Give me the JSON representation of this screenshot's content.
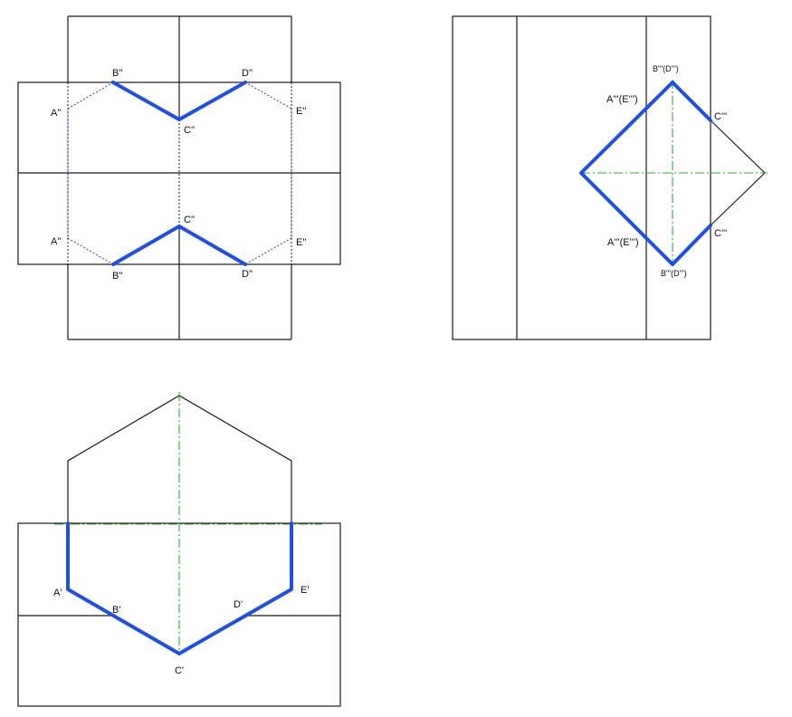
{
  "colors": {
    "outline": "#1a1a1a",
    "intersection": "#1f4fe6",
    "hidden": "#2b3fd6",
    "centerline": "#2fae2f"
  },
  "front_view": {
    "top": {
      "A": "A''",
      "B": "B''",
      "C": "C''",
      "D": "D''",
      "E": "E''"
    },
    "bottom": {
      "A": "A''",
      "B": "B''",
      "C": "C''",
      "D": "D''",
      "E": "E''"
    }
  },
  "side_view": {
    "top": "B'''(D''')",
    "bottom": "B'''(D''')",
    "left_upper": "A'''(E''')",
    "left_lower": "A'''(E''')",
    "right_upper": "C'''",
    "right_lower": "C'''"
  },
  "top_view": {
    "A": "A'",
    "B": "B'",
    "C": "C'",
    "D": "D'",
    "E": "E'"
  }
}
